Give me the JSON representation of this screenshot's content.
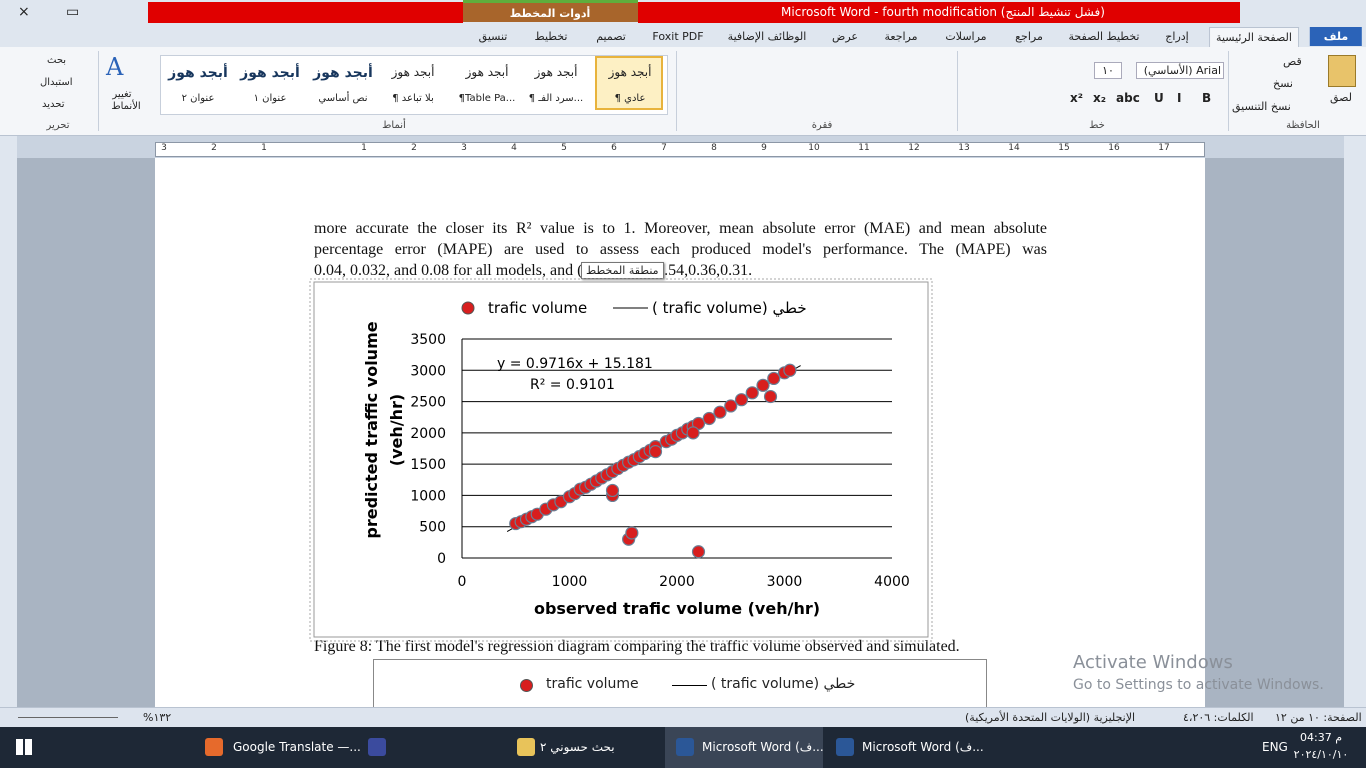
{
  "window": {
    "title": "Microsoft Word  -  fourth modification (فشل تنشيط المنتج)",
    "context_tab": "أدوات المخطط",
    "context_subtabs": [
      "تنسيق",
      "تخطيط",
      "تصميم"
    ]
  },
  "ribbon": {
    "tabs": [
      "ملف",
      "الصفحة الرئيسية",
      "إدراج",
      "تخطيط الصفحة",
      "مراجع",
      "مراسلات",
      "مراجعة",
      "عرض",
      "الوظائف الإضافية",
      "Foxit PDF"
    ],
    "groups": [
      "الحافظة",
      "خط",
      "فقرة",
      "أنماط",
      "تحرير"
    ],
    "clipboard": [
      "لصق",
      "قص",
      "نسخ",
      "نسخ التنسيق"
    ],
    "font_name": "Arial (الأساسي)",
    "font_size": "١٠",
    "styles": [
      {
        "preview": "أبجد هوز",
        "name": "¶ عادي"
      },
      {
        "preview": "أبجد هوز",
        "name": "¶ سرد الفـ..."
      },
      {
        "preview": "أبجد هوز",
        "name": "¶Table Pa..."
      },
      {
        "preview": "أبجد هوز",
        "name": "¶ بلا تباعد"
      },
      {
        "preview": "أبجد هوز",
        "name": "نص أساسي"
      },
      {
        "preview": "أبجد هوز",
        "name": "عنوان ١"
      },
      {
        "preview": "أبجد هوز",
        "name": "عنوان ٢"
      }
    ],
    "change_styles": [
      "تغيير",
      "الأنماط"
    ],
    "editing": [
      "بحث",
      "استبدال",
      "تحديد"
    ]
  },
  "ruler": [
    3,
    2,
    1,
    1,
    2,
    3,
    4,
    5,
    6,
    7,
    8,
    9,
    10,
    11,
    12,
    13,
    14,
    15,
    16,
    17
  ],
  "document": {
    "lines": [
      "more accurate the closer its R² value is to 1. Moreover, mean absolute error (MAE) and mean absolute",
      "percentage error (MAPE) are used to assess each produced model's performance. The (MAPE) was",
      "0.04, 0.032, and 0.08 for all models, and (MAE) was 0.54,0.36,0.31."
    ],
    "tooltip": "منطقة المخطط",
    "caption": "Figure 8:  The first model's regression diagram comparing the traffic volume observed and simulated.",
    "next_chart_legend": [
      "trafic volume",
      "( trafic volume) خطي"
    ]
  },
  "chart_data": {
    "type": "scatter",
    "xlabel": "observed trafic volume (veh/hr)",
    "ylabel": [
      "predicted traffic volume",
      "(veh/hr)"
    ],
    "annotations": [
      "y = 0.9716x + 15.181",
      "R² = 0.9101"
    ],
    "xlim": [
      0,
      4000
    ],
    "ylim": [
      0,
      3500
    ],
    "xticks": [
      0,
      1000,
      2000,
      3000,
      4000
    ],
    "yticks": [
      0,
      500,
      1000,
      1500,
      2000,
      2500,
      3000,
      3500
    ],
    "grid": true,
    "legend": "top",
    "series": [
      {
        "name": "trafic volume",
        "type": "scatter",
        "color": "#d81e1e",
        "x": [
          500,
          550,
          600,
          650,
          700,
          780,
          850,
          920,
          1000,
          1050,
          1100,
          1150,
          1200,
          1250,
          1300,
          1350,
          1400,
          1450,
          1500,
          1550,
          1600,
          1650,
          1700,
          1750,
          1800,
          1900,
          1950,
          2000,
          2050,
          2100,
          2150,
          2200,
          2300,
          2400,
          2500,
          2600,
          2700,
          2800,
          2900,
          3000,
          3050,
          1400,
          1400,
          1550,
          1580,
          2200,
          2870,
          2150,
          1800
        ],
        "values": [
          550,
          580,
          620,
          660,
          700,
          780,
          850,
          900,
          980,
          1030,
          1100,
          1130,
          1180,
          1230,
          1280,
          1330,
          1380,
          1430,
          1480,
          1530,
          1570,
          1620,
          1670,
          1720,
          1780,
          1860,
          1900,
          1960,
          2000,
          2060,
          2100,
          2150,
          2230,
          2330,
          2430,
          2530,
          2640,
          2760,
          2870,
          2960,
          3000,
          1000,
          1080,
          300,
          400,
          100,
          2580,
          2000,
          1700
        ]
      },
      {
        "name": "( trafic volume) خطي",
        "type": "line",
        "color": "#000000",
        "x": [
          420,
          3150
        ],
        "values": [
          423.3,
          3075.7
        ]
      }
    ]
  },
  "overlay": {
    "title": "Activate Windows",
    "text": "Go to Settings to activate Windows."
  },
  "status_bar": {
    "page": "الصفحة: ١٠ من ١٢",
    "words": "الكلمات: ٤،٢٠٦",
    "language": "الإنجليزية (الولايات المتحدة الأمريكية)",
    "zoom": "%١٣٢"
  },
  "taskbar": {
    "items": [
      "Google Translate —...",
      "بحث حسوني ٢",
      "Microsoft Word (ف...",
      "Microsoft Word (ف..."
    ],
    "lang": "ENG",
    "time": "04:37 م",
    "date": "٢٠٢٤/١٠/١٠"
  }
}
